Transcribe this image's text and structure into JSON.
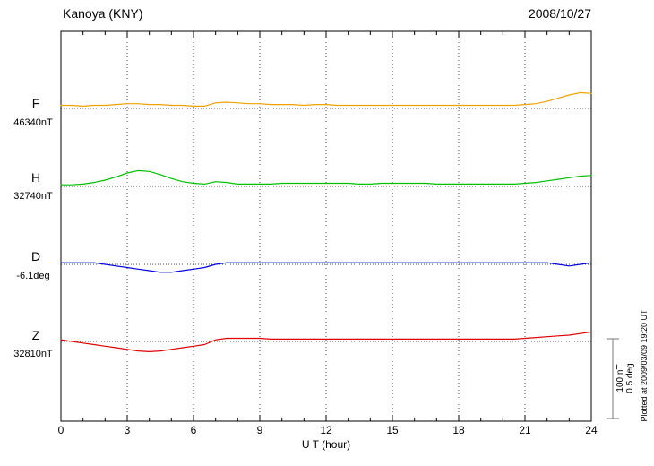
{
  "chart_data": {
    "type": "line",
    "title": "Kanoya (KNY)",
    "date": "2008/10/27",
    "xlabel": "U T (hour)",
    "x_range": [
      0,
      24
    ],
    "x_ticks": [
      0,
      3,
      6,
      9,
      12,
      15,
      18,
      21,
      24
    ],
    "grid": "dotted vertical lines every 3 hours; dotted horizontal baseline per trace",
    "scale_bar": {
      "nT_label": "100 nT",
      "deg_label": "0.5 deg",
      "nT_value": 100,
      "deg_value": 0.5
    },
    "plotted_at": "Plotted at 2009/03/09 19:20 UT",
    "series": [
      {
        "name": "F",
        "baseline_label": "46340nT",
        "baseline_value": 46340,
        "unit": "nT",
        "color": "#f0a000",
        "x_step": 0.5,
        "values": [
          4,
          4,
          3,
          4,
          4,
          5,
          6,
          6,
          5,
          5,
          4,
          4,
          3,
          3,
          7,
          8,
          7,
          6,
          6,
          5,
          5,
          5,
          4,
          5,
          5,
          4,
          4,
          4,
          4,
          4,
          4,
          4,
          4,
          4,
          4,
          4,
          4,
          4,
          4,
          4,
          4,
          4,
          5,
          6,
          9,
          13,
          17,
          20,
          19
        ]
      },
      {
        "name": "H",
        "baseline_label": "32740nT",
        "baseline_value": 32740,
        "unit": "nT",
        "color": "#00c000",
        "x_step": 0.5,
        "values": [
          2,
          2,
          3,
          5,
          8,
          12,
          17,
          20,
          19,
          15,
          10,
          6,
          4,
          3,
          6,
          5,
          3,
          3,
          3,
          3,
          4,
          4,
          4,
          4,
          4,
          4,
          4,
          3,
          3,
          4,
          4,
          4,
          4,
          4,
          3,
          3,
          3,
          3,
          3,
          3,
          3,
          3,
          4,
          5,
          7,
          9,
          11,
          13,
          14
        ]
      },
      {
        "name": "D",
        "baseline_label": "-6.1deg",
        "baseline_value": -6.1,
        "unit": "deg",
        "color": "#0000e0",
        "x_step": 0.5,
        "values": [
          0.01,
          0.01,
          0.01,
          0.01,
          0,
          -0.01,
          -0.02,
          -0.03,
          -0.04,
          -0.05,
          -0.05,
          -0.04,
          -0.03,
          -0.02,
          0,
          0.01,
          0.01,
          0.01,
          0.01,
          0.01,
          0.01,
          0.01,
          0.01,
          0.01,
          0.01,
          0.01,
          0.01,
          0.01,
          0.01,
          0.01,
          0.01,
          0.01,
          0.01,
          0.01,
          0.01,
          0.01,
          0.01,
          0.01,
          0.01,
          0.01,
          0.01,
          0.01,
          0.01,
          0.01,
          0.01,
          0,
          -0.01,
          0,
          0.01
        ]
      },
      {
        "name": "Z",
        "baseline_label": "32810nT",
        "baseline_value": 32810,
        "unit": "nT",
        "color": "#e00000",
        "x_step": 0.5,
        "values": [
          2,
          0,
          -2,
          -4,
          -6,
          -8,
          -10,
          -12,
          -13,
          -12,
          -10,
          -8,
          -6,
          -4,
          2,
          4,
          4,
          4,
          4,
          3,
          3,
          3,
          3,
          3,
          3,
          3,
          3,
          3,
          3,
          3,
          3,
          3,
          3,
          3,
          3,
          3,
          3,
          3,
          3,
          3,
          3,
          3,
          4,
          5,
          6,
          7,
          8,
          10,
          12
        ]
      }
    ]
  }
}
